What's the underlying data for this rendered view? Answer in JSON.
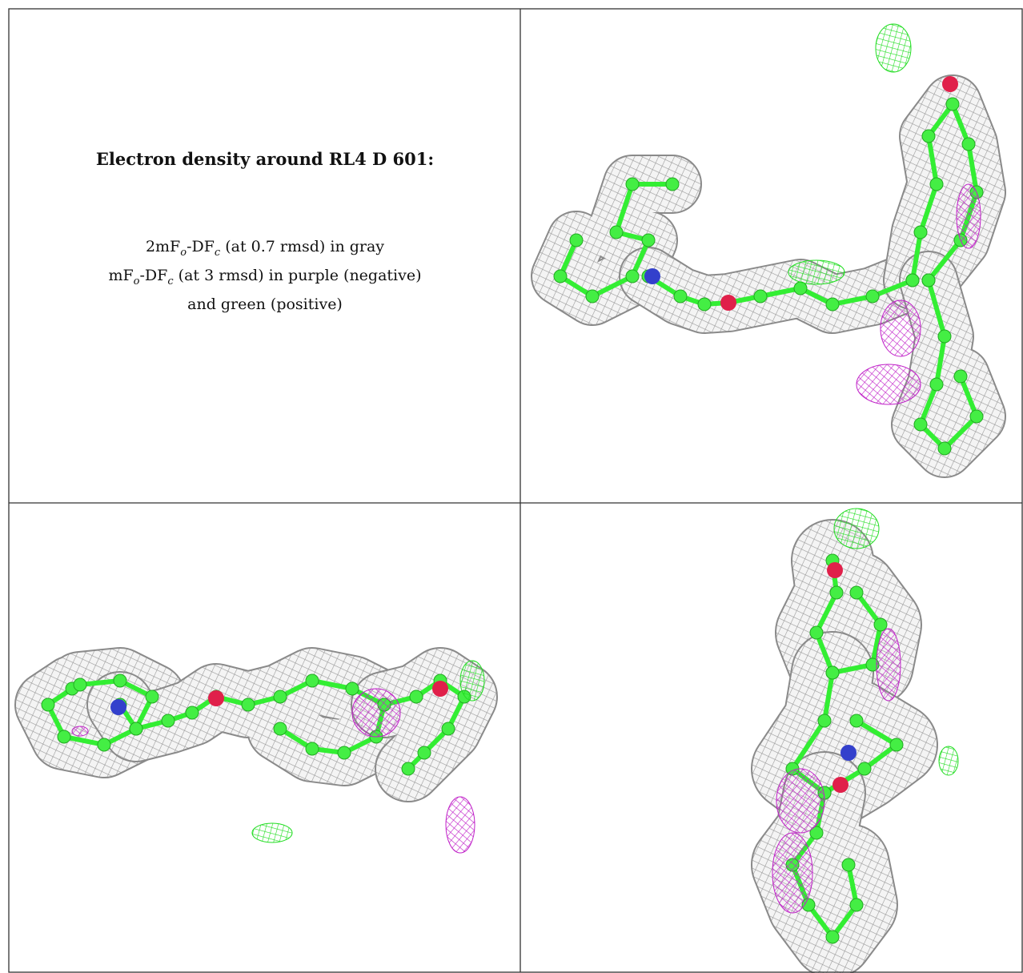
{
  "title": "Electron density around RL4 D 601:",
  "legend": [
    [
      "2mF",
      "o",
      "-DF",
      "c",
      " (at 0.7 rmsd) in gray"
    ],
    [
      "mF",
      "o",
      "-DF",
      "c",
      " (at 3 rmsd) in purple (negative)"
    ],
    [
      "and green (positive)"
    ]
  ]
}
